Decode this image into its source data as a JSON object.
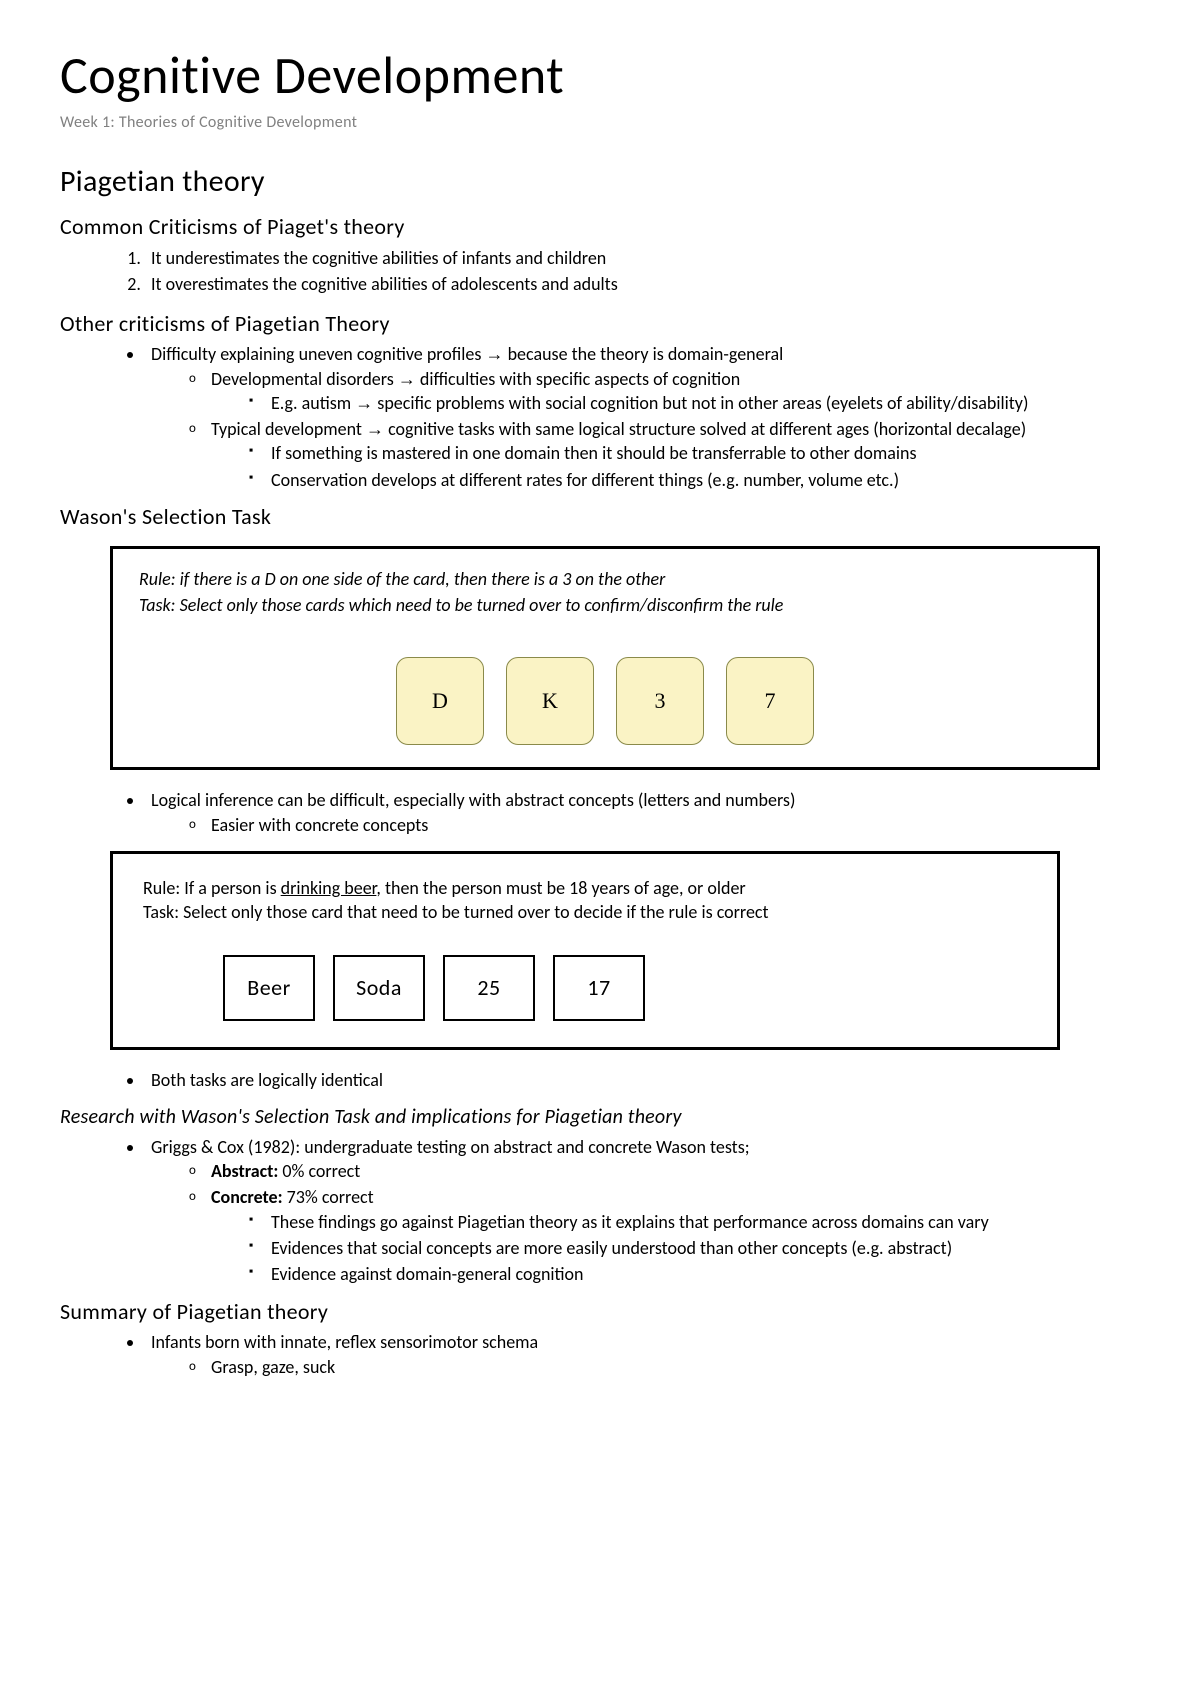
{
  "title": "Cognitive Development",
  "subtitle": "Week 1: Theories of Cognitive Development",
  "h2_piaget": "Piagetian theory",
  "h3_common": "Common Criticisms of Piaget's theory",
  "common_list": {
    "i1": "It underestimates the cognitive abilities of infants and children",
    "i2": "It overestimates the cognitive abilities of adolescents and adults"
  },
  "h3_other": "Other criticisms of Piagetian Theory",
  "other": {
    "l1a_pre": "Difficulty explaining uneven cognitive profiles  ",
    "l1a_post": " because the theory is domain-general",
    "l2a_pre": "Developmental disorders ",
    "l2a_post": " difficulties with specific aspects of cognition",
    "l3a_pre": "E.g. autism ",
    "l3a_post": " specific problems with social cognition but not in other areas (eyelets of ability/disability)",
    "l2b_pre": "Typical development ",
    "l2b_post": " cognitive tasks with same logical structure solved at different ages (horizontal decalage)",
    "l3b": "If something is mastered in one domain then it should be transferrable to other domains",
    "l3c": "Conservation develops at different rates for different things (e.g. number, volume etc.)"
  },
  "arrow": "→",
  "h3_wason": "Wason's Selection Task",
  "wason1": {
    "rule": "Rule: if there is a D on one side of the card, then there is a 3 on the other",
    "task": "Task: Select only those cards which need to be turned over to confirm/disconfirm the rule",
    "cards": {
      "c1": "D",
      "c2": "K",
      "c3": "3",
      "c4": "7"
    },
    "card_bg": "#faf3c5",
    "card_border": "#8a8a4a"
  },
  "after1": {
    "l1": "Logical inference can be difficult, especially with abstract concepts (letters and numbers)",
    "l2": "Easier with concrete concepts"
  },
  "wason2": {
    "rule_pre": "Rule: If a person is ",
    "rule_underline": "drinking beer",
    "rule_post": ", then the person must be 18 years of age, or older",
    "task": "Task: Select only those card that need to be turned over to decide if the rule is correct",
    "cards": {
      "c1": "Beer",
      "c2": "Soda",
      "c3": "25",
      "c4": "17"
    }
  },
  "after2": {
    "l1": "Both tasks are logically identical"
  },
  "h4_research": "Research with Wason's Selection Task and implications for Piagetian theory",
  "research": {
    "l1": "Griggs & Cox (1982): undergraduate testing on abstract and concrete Wason tests;",
    "l2a_b": "Abstract:",
    "l2a_t": " 0% correct",
    "l2b_b": "Concrete:",
    "l2b_t": " 73% correct",
    "l3a": "These findings go against Piagetian theory as it explains that performance across domains can vary",
    "l3b": "Evidences that social concepts are more easily understood than other concepts (e.g. abstract)",
    "l3c": "Evidence against domain-general cognition"
  },
  "h3_summary": "Summary of Piagetian theory",
  "summary": {
    "l1": "Infants born with innate, reflex sensorimotor schema",
    "l2": "Grasp, gaze, suck"
  }
}
